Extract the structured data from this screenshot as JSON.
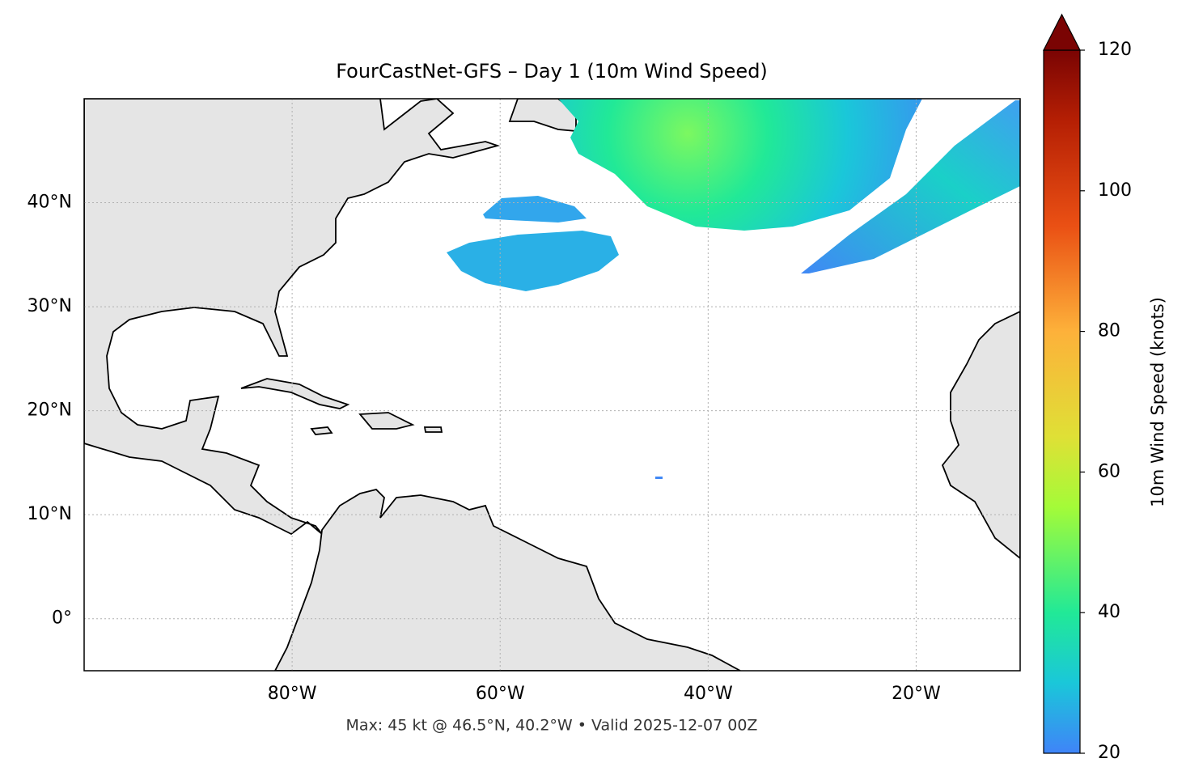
{
  "chart_data": {
    "type": "map",
    "title": "FourCastNet-GFS – Day 1 (10m Wind Speed)",
    "footnote": "Max: 45 kt @ 46.5°N, 40.2°W • Valid 2025-12-07 00Z",
    "xlim": [
      -100,
      -10
    ],
    "ylim": [
      -5,
      50
    ],
    "xticks": [
      {
        "value": -80,
        "label": "80°W"
      },
      {
        "value": -60,
        "label": "60°W"
      },
      {
        "value": -40,
        "label": "40°W"
      },
      {
        "value": -20,
        "label": "20°W"
      }
    ],
    "yticks": [
      {
        "value": 0,
        "label": "0°"
      },
      {
        "value": 10,
        "label": "10°N"
      },
      {
        "value": 20,
        "label": "20°N"
      },
      {
        "value": 30,
        "label": "30°N"
      },
      {
        "value": 40,
        "label": "40°N"
      }
    ],
    "grid": true,
    "colorbar": {
      "label": "10m Wind Speed (knots)",
      "lim": [
        20,
        120
      ],
      "ticks": [
        20,
        40,
        60,
        80,
        100,
        120
      ],
      "extend": "max"
    }
  }
}
